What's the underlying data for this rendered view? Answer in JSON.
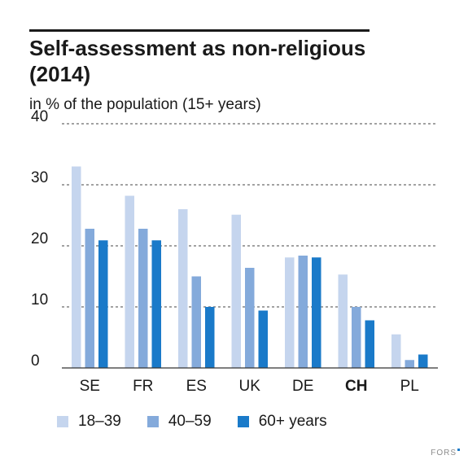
{
  "chart_data": {
    "type": "bar",
    "title": "Self-assessment as non-religious (2014)",
    "subtitle": "in % of the population (15+ years)",
    "categories": [
      "SE",
      "FR",
      "ES",
      "UK",
      "DE",
      "CH",
      "PL"
    ],
    "highlight_category": "CH",
    "series": [
      {
        "name": "18–39",
        "values": [
          33,
          28.2,
          26,
          25.1,
          18.1,
          15.3,
          5.5
        ],
        "color": "#c5d5ee"
      },
      {
        "name": "40–59",
        "values": [
          22.8,
          22.8,
          15,
          16.4,
          18.4,
          10,
          1.3
        ],
        "color": "#84aadb"
      },
      {
        "name": "60+ years",
        "values": [
          20.9,
          20.9,
          10,
          9.4,
          18.1,
          7.8,
          2.2
        ],
        "color": "#1a7ac9"
      }
    ],
    "ylim": [
      0,
      40
    ],
    "yticks": [
      0,
      10,
      20,
      30,
      40
    ],
    "grid": true,
    "legend_position": "bottom"
  },
  "source": {
    "label": "FORS",
    "accent_color": "#1a7ac9"
  }
}
